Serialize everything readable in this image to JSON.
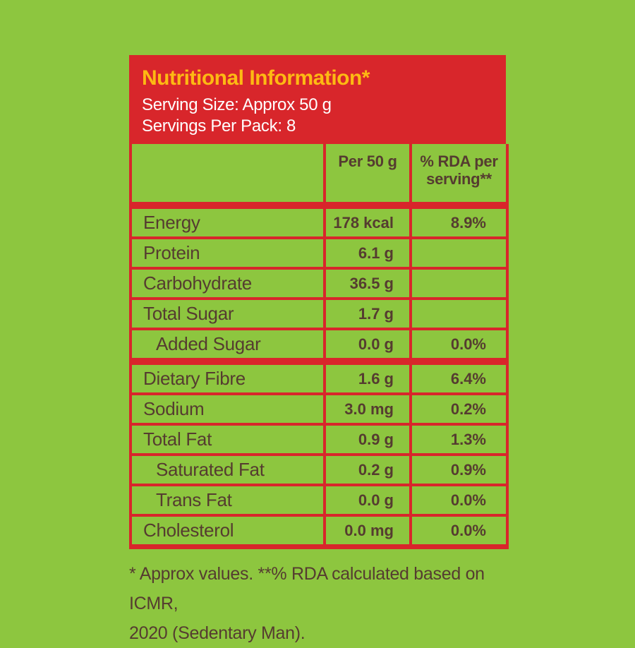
{
  "colors": {
    "background_green": "#8dc63f",
    "brand_red": "#d8262b",
    "title_yellow": "#fdb913",
    "text_brown": "#553c30",
    "white": "#ffffff"
  },
  "header": {
    "title": "Nutritional Information*",
    "serving_size": "Serving Size: Approx 50 g",
    "servings_per_pack": "Servings Per Pack: 8"
  },
  "table": {
    "columns": [
      "",
      "Per 50 g",
      "% RDA per serving**"
    ],
    "rows": [
      {
        "label": "Energy",
        "per_50g": "178 kcal",
        "rda_per_serving": "8.9%",
        "indent": false,
        "group_separator": false
      },
      {
        "label": "Protein",
        "per_50g": "6.1 g",
        "rda_per_serving": "",
        "indent": false,
        "group_separator": false
      },
      {
        "label": "Carbohydrate",
        "per_50g": "36.5 g",
        "rda_per_serving": "",
        "indent": false,
        "group_separator": false
      },
      {
        "label": "Total Sugar",
        "per_50g": "1.7 g",
        "rda_per_serving": "",
        "indent": false,
        "group_separator": false
      },
      {
        "label": "Added Sugar",
        "per_50g": "0.0 g",
        "rda_per_serving": "0.0%",
        "indent": true,
        "group_separator": false
      },
      {
        "label": "Dietary Fibre",
        "per_50g": "1.6 g",
        "rda_per_serving": "6.4%",
        "indent": false,
        "group_separator": true
      },
      {
        "label": "Sodium",
        "per_50g": "3.0 mg",
        "rda_per_serving": "0.2%",
        "indent": false,
        "group_separator": false
      },
      {
        "label": "Total Fat",
        "per_50g": "0.9 g",
        "rda_per_serving": "1.3%",
        "indent": false,
        "group_separator": false
      },
      {
        "label": "Saturated Fat",
        "per_50g": "0.2 g",
        "rda_per_serving": "0.9%",
        "indent": true,
        "group_separator": false
      },
      {
        "label": "Trans Fat",
        "per_50g": "0.0 g",
        "rda_per_serving": "0.0%",
        "indent": true,
        "group_separator": false
      },
      {
        "label": "Cholesterol",
        "per_50g": "0.0 mg",
        "rda_per_serving": "0.0%",
        "indent": false,
        "group_separator": false
      }
    ]
  },
  "footnote": {
    "lines": [
      "* Approx values. **% RDA calculated based on ICMR,",
      "2020 (Sedentary Man)."
    ]
  }
}
